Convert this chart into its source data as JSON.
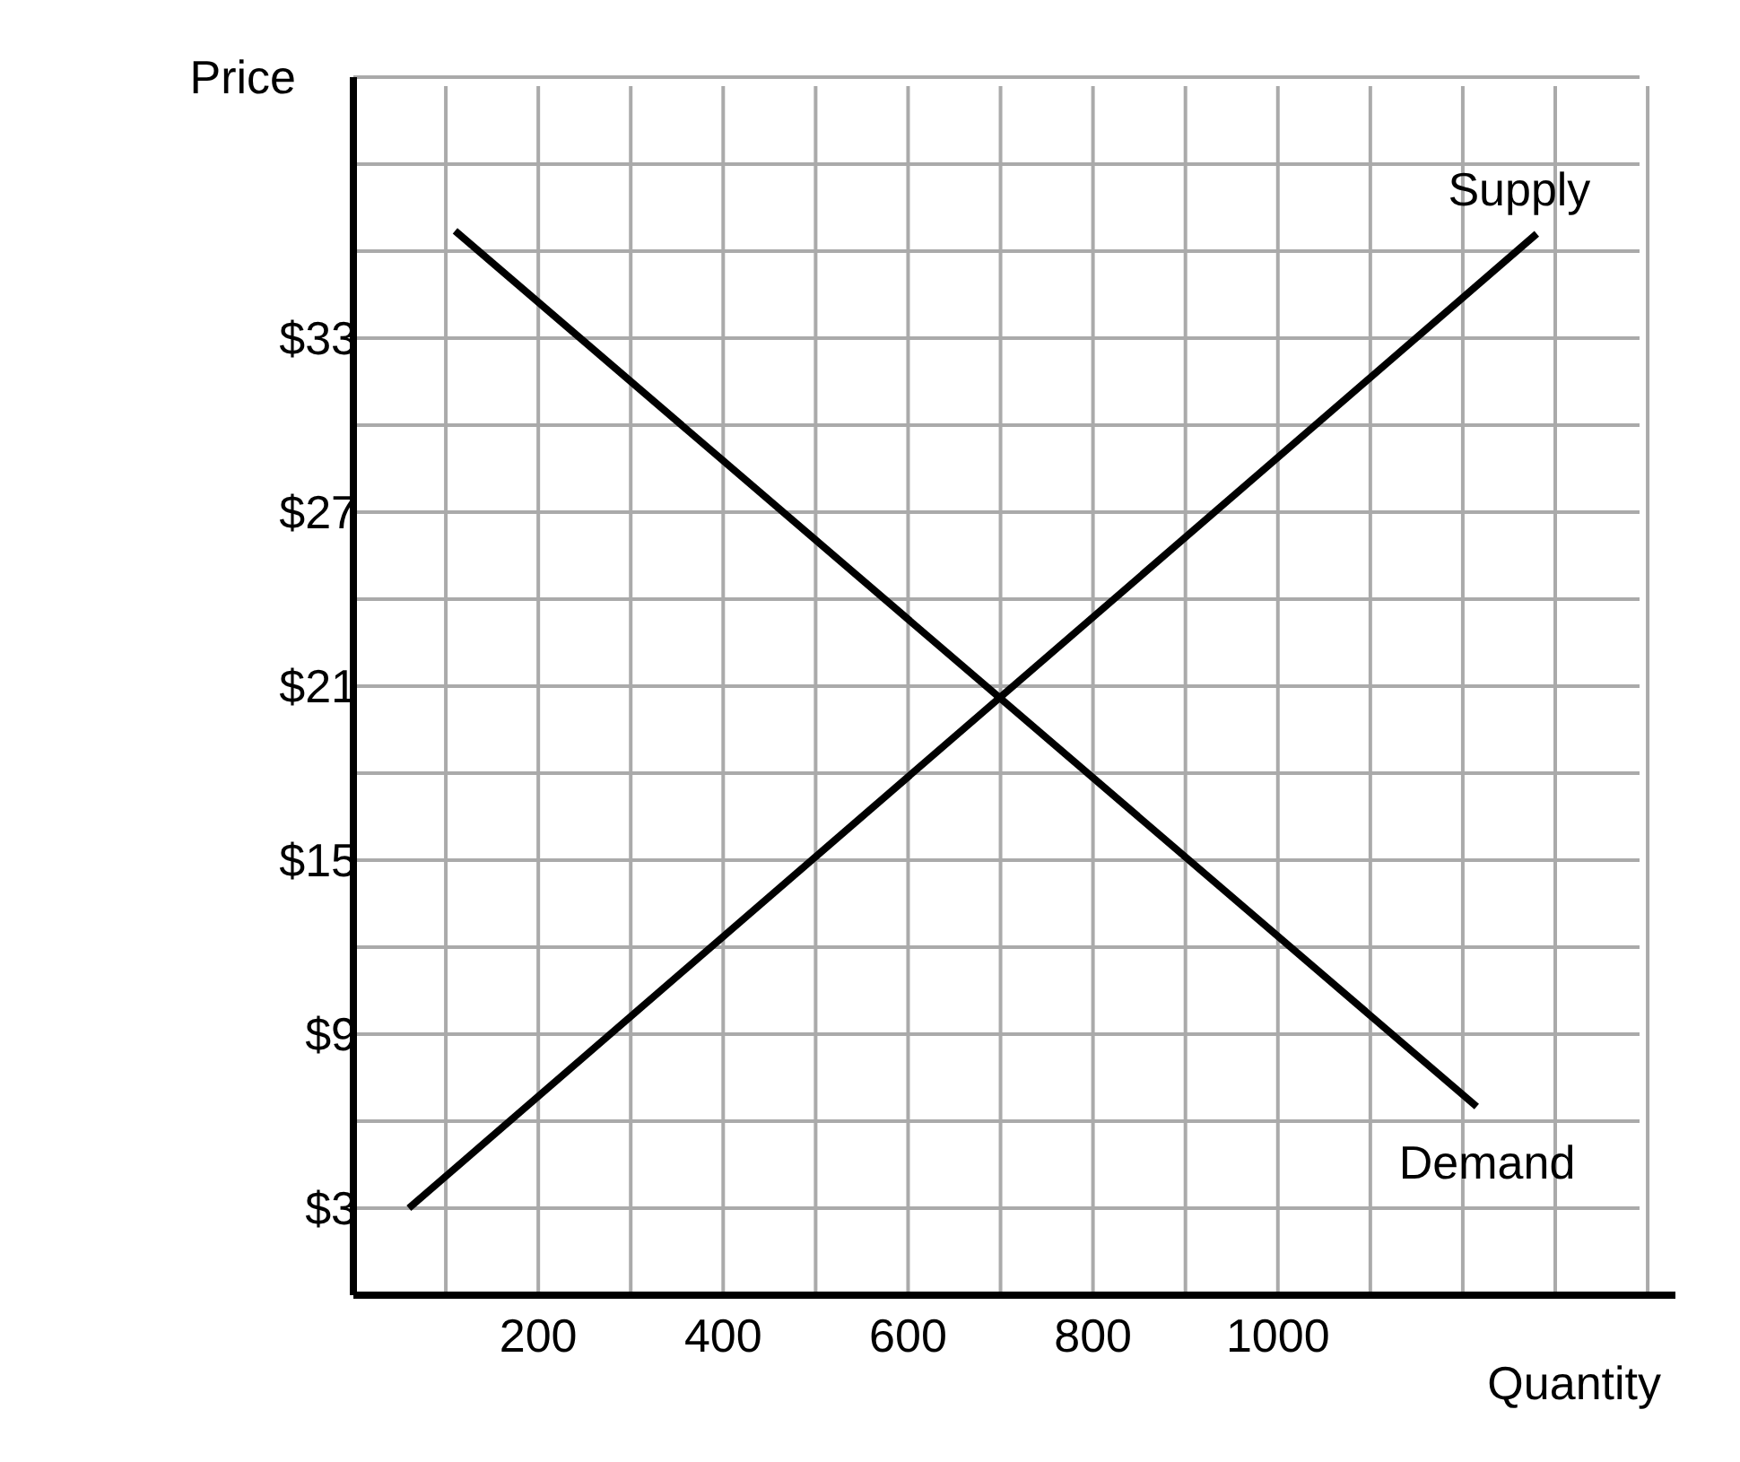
{
  "chart_data": {
    "type": "line",
    "xlabel": "Quantity",
    "ylabel": "Price",
    "xlim": [
      0,
      1430
    ],
    "ylim": [
      0,
      42
    ],
    "xticks": [
      {
        "value": 100,
        "label": null
      },
      200,
      {
        "value": 300,
        "label": null
      },
      400,
      {
        "value": 500,
        "label": null
      },
      600,
      {
        "value": 700,
        "label": null
      },
      800,
      {
        "value": 900,
        "label": null
      },
      1000,
      {
        "value": 1100,
        "label": null
      },
      {
        "value": 1200,
        "label": null
      },
      {
        "value": 1300,
        "label": null
      },
      {
        "value": 1400,
        "label": null
      }
    ],
    "yticks": [
      {
        "value": 3,
        "label": "$3"
      },
      {
        "value": 6,
        "label": null
      },
      {
        "value": 9,
        "label": "$9"
      },
      {
        "value": 12,
        "label": null
      },
      {
        "value": 15,
        "label": "$15"
      },
      {
        "value": 18,
        "label": null
      },
      {
        "value": 21,
        "label": "$21"
      },
      {
        "value": 24,
        "label": null
      },
      {
        "value": 27,
        "label": "$27"
      },
      {
        "value": 30,
        "label": null
      },
      {
        "value": 33,
        "label": "$33"
      },
      {
        "value": 36,
        "label": null
      },
      {
        "value": 39,
        "label": null
      },
      {
        "value": 42,
        "label": null
      }
    ],
    "grid": true,
    "marker": "none",
    "line_style": "solid",
    "series": [
      {
        "name": "Supply",
        "color": "#000000",
        "x": [
          60,
          1280
        ],
        "values": [
          3,
          36.6
        ]
      },
      {
        "name": "Demand",
        "color": "#000000",
        "x": [
          110,
          1215
        ],
        "values": [
          36.7,
          6.5
        ]
      }
    ]
  }
}
